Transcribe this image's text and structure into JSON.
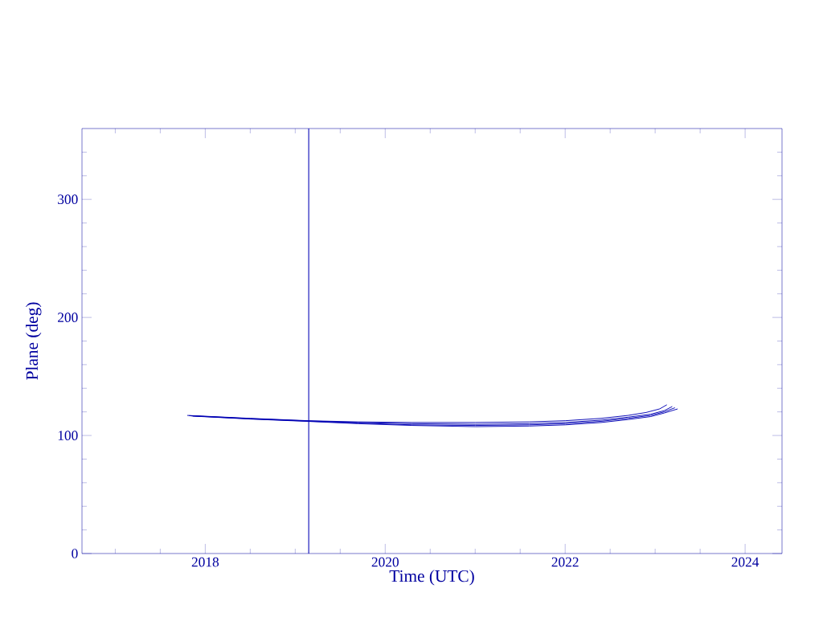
{
  "chart_data": {
    "type": "line",
    "xlabel": "Time (UTC)",
    "ylabel": "Plane (deg)",
    "xlim": [
      2016.63,
      2024.41
    ],
    "ylim": [
      0,
      360
    ],
    "xticks": [
      {
        "value": 2017,
        "label": null
      },
      {
        "value": 2017.5,
        "label": null
      },
      2018,
      {
        "value": 2018.5,
        "label": null
      },
      {
        "value": 2019,
        "label": null
      },
      {
        "value": 2019.5,
        "label": null
      },
      2020,
      {
        "value": 2020.5,
        "label": null
      },
      {
        "value": 2021,
        "label": null
      },
      {
        "value": 2021.5,
        "label": null
      },
      2022,
      {
        "value": 2022.5,
        "label": null
      },
      {
        "value": 2023,
        "label": null
      },
      {
        "value": 2023.5,
        "label": null
      },
      2024
    ],
    "yticks": [
      0,
      {
        "value": 20,
        "label": null
      },
      {
        "value": 40,
        "label": null
      },
      {
        "value": 60,
        "label": null
      },
      {
        "value": 80,
        "label": null
      },
      100,
      {
        "value": 120,
        "label": null
      },
      {
        "value": 140,
        "label": null
      },
      {
        "value": 160,
        "label": null
      },
      {
        "value": 180,
        "label": null
      },
      200,
      {
        "value": 220,
        "label": null
      },
      {
        "value": 240,
        "label": null
      },
      {
        "value": 260,
        "label": null
      },
      {
        "value": 280,
        "label": null
      },
      300,
      {
        "value": 320,
        "label": null
      },
      {
        "value": 340,
        "label": null
      }
    ],
    "grid": false,
    "marker": "none",
    "line_style": "solid",
    "ref_lines": [
      {
        "axis": "x",
        "value": 2019.15,
        "color": "#0000b4"
      }
    ],
    "series": [
      {
        "color": "#0000b4",
        "x": [
          2017.8,
          2018.5,
          2019.15,
          2019.7,
          2020.3,
          2021.0,
          2021.6,
          2022.0,
          2022.4,
          2022.7,
          2022.9,
          2023.05,
          2023.13
        ],
        "values": [
          117,
          114.5,
          112.5,
          111.5,
          111,
          111,
          111.5,
          112.5,
          114.5,
          117,
          119.5,
          122.5,
          126
        ]
      },
      {
        "color": "#0000b4",
        "x": [
          2017.82,
          2018.5,
          2019.15,
          2019.7,
          2020.3,
          2021.0,
          2021.6,
          2022.0,
          2022.4,
          2022.7,
          2022.95,
          2023.1,
          2023.19
        ],
        "values": [
          116.8,
          114.3,
          112.3,
          111,
          110,
          109.5,
          110,
          111,
          113,
          115.5,
          118,
          121,
          124.5
        ]
      },
      {
        "color": "#0000b4",
        "x": [
          2017.84,
          2018.5,
          2019.15,
          2019.7,
          2020.3,
          2021.0,
          2021.6,
          2022.0,
          2022.4,
          2022.7,
          2022.95,
          2023.1,
          2023.22
        ],
        "values": [
          116.6,
          114.1,
          112.1,
          110.5,
          109,
          108.5,
          109,
          110,
          112,
          114.5,
          117,
          120,
          123.5
        ]
      },
      {
        "color": "#0000b4",
        "x": [
          2017.86,
          2018.5,
          2019.15,
          2019.7,
          2020.3,
          2021.0,
          2021.6,
          2022.0,
          2022.4,
          2022.7,
          2022.95,
          2023.1,
          2023.25
        ],
        "values": [
          116.4,
          113.9,
          111.9,
          110,
          108.5,
          107.5,
          108,
          109,
          111,
          113.5,
          116,
          119,
          122.5
        ]
      }
    ]
  }
}
